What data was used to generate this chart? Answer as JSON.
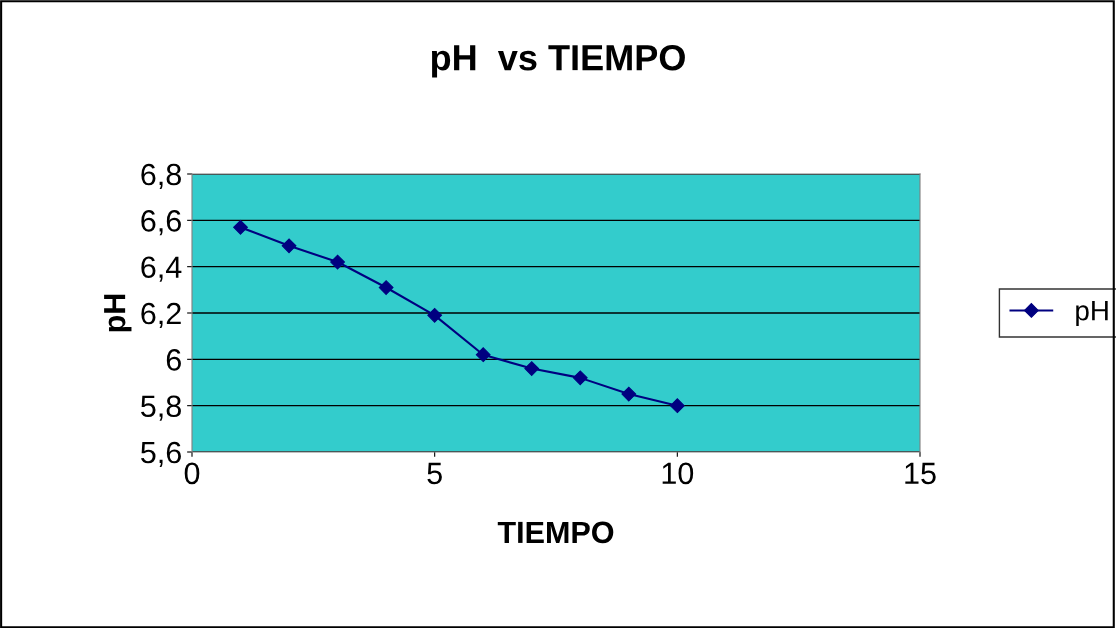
{
  "chart_data": {
    "type": "line",
    "title": "pH  vs TIEMPO",
    "xlabel": "TIEMPO",
    "ylabel": "pH",
    "x": [
      1,
      2,
      3,
      4,
      5,
      6,
      7,
      8,
      9,
      10
    ],
    "series": [
      {
        "name": "pH",
        "color": "#000080",
        "values": [
          6.57,
          6.49,
          6.42,
          6.31,
          6.19,
          6.02,
          5.96,
          5.92,
          5.85,
          5.8
        ]
      }
    ],
    "xlim": [
      0,
      15
    ],
    "xticks": [
      0,
      5,
      10,
      15
    ],
    "ylim": [
      5.6,
      6.8
    ],
    "yticks": [
      {
        "value": 5.6,
        "label": "5,6"
      },
      {
        "value": 5.8,
        "label": "5,8"
      },
      {
        "value": 6,
        "label": "6"
      },
      {
        "value": 6.2,
        "label": "6,2"
      },
      {
        "value": 6.4,
        "label": "6,4"
      },
      {
        "value": 6.6,
        "label": "6,6"
      },
      {
        "value": 6.8,
        "label": "6,8"
      }
    ],
    "grid": "y",
    "legend": "right",
    "marker": "diamond",
    "line_style": "solid"
  }
}
